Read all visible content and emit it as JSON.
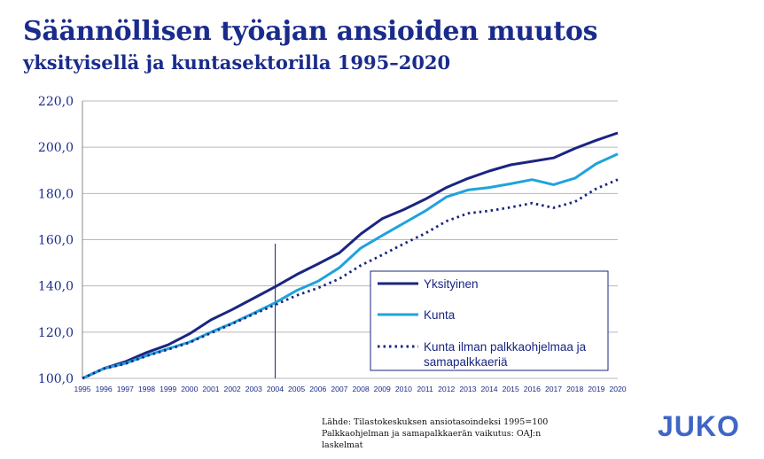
{
  "title": "Säännöllisen työajan ansioiden muutos",
  "subtitle": "yksityisellä ja kuntasektorilla 1995–2020",
  "source_lines": "Lähde: Tilastokeskuksen ansiotasoindeksi 1995=100\nPalkkaohjelman ja samapalkkaerän vaikutus: OAJ:n\nlaskelmat",
  "logo_text": "JUKO",
  "colors": {
    "title": "#1a2b8c",
    "private": "#1a2580",
    "municipal": "#1fa3dc",
    "municipal_adjusted": "#1a2580",
    "logo": "#3f66c6"
  },
  "chart_data": {
    "type": "line",
    "title": "",
    "xlabel": "",
    "ylabel": "",
    "ylim": [
      100,
      220
    ],
    "yticks": [
      "100,0",
      "120,0",
      "140,0",
      "160,0",
      "180,0",
      "200,0",
      "220,0"
    ],
    "ytick_values": [
      100,
      120,
      140,
      160,
      180,
      200,
      220
    ],
    "x": [
      "1995",
      "1996",
      "1997",
      "1998",
      "1999",
      "2000",
      "2001",
      "2002",
      "2003",
      "2004",
      "2005",
      "2006",
      "2007",
      "2008",
      "2009",
      "2010",
      "2011",
      "2012",
      "2013",
      "2014",
      "2015",
      "2016",
      "2017",
      "2018",
      "2019",
      "2020"
    ],
    "marker_year": "2004",
    "legend_position": "bottom-right",
    "series": [
      {
        "name": "Yksityinen",
        "style": "solid",
        "color_key": "private",
        "values": [
          100,
          104.3,
          107.2,
          111.2,
          114.5,
          119.3,
          125.3,
          129.8,
          134.7,
          139.6,
          144.9,
          149.5,
          154.3,
          162.5,
          169.1,
          173.0,
          177.5,
          182.6,
          186.5,
          189.7,
          192.4,
          193.9,
          195.4,
          199.5,
          203.0,
          206.2
        ]
      },
      {
        "name": "Kunta",
        "style": "solid",
        "color_key": "municipal",
        "values": [
          100,
          104.2,
          106.5,
          109.9,
          112.8,
          115.7,
          120.0,
          123.9,
          128.2,
          132.7,
          138.0,
          142.0,
          147.9,
          156.4,
          161.8,
          167.1,
          172.4,
          178.5,
          181.5,
          182.6,
          184.2,
          186.0,
          183.8,
          186.6,
          192.9,
          197.1
        ]
      },
      {
        "name": "Kunta ilman palkkaohjelmaa ja samapalkkaeriä",
        "style": "dotted",
        "color_key": "municipal_adjusted",
        "values": [
          100,
          104.2,
          106.3,
          109.7,
          112.5,
          115.5,
          119.6,
          123.6,
          127.8,
          131.8,
          135.9,
          139.1,
          143.1,
          148.9,
          153.4,
          158.2,
          162.7,
          168.0,
          171.4,
          172.5,
          174.0,
          175.8,
          173.8,
          176.4,
          182.1,
          186.0
        ]
      }
    ],
    "legend_labels": [
      "Yksityinen",
      "Kunta",
      "Kunta ilman palkkaohjelmaa ja",
      "samapalkkaeriä"
    ]
  }
}
